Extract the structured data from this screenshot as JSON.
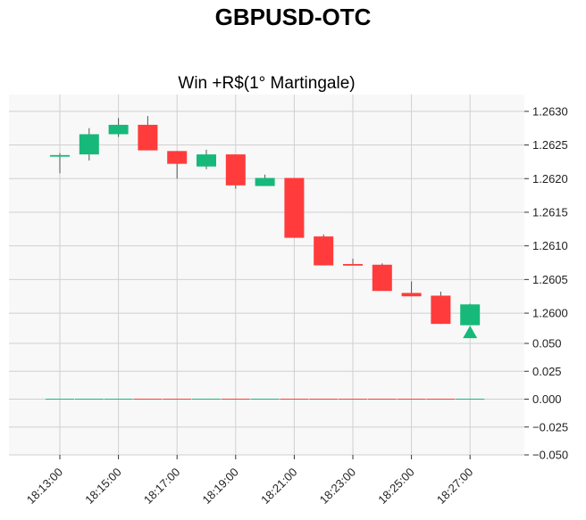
{
  "title": "GBPUSD-OTC",
  "chart_data": [
    {
      "type": "candlestick",
      "subtitle": "Win +R$(1° Martingale)",
      "x_ticks": [
        "18:13:00",
        "18:15:00",
        "18:17:00",
        "18:19:00",
        "18:21:00",
        "18:23:00",
        "18:25:00",
        "18:27:00"
      ],
      "y_ticks": [
        "1.2600",
        "1.2605",
        "1.2610",
        "1.2615",
        "1.2620",
        "1.2625",
        "1.2630"
      ],
      "ylim": [
        1.25955,
        1.26325
      ],
      "grid": true,
      "colors": {
        "up": "#16b97a",
        "down": "#ff3b3b",
        "wick": "#555555",
        "background": "#f8f8f8",
        "grid": "#d0d0d0"
      },
      "candles": [
        {
          "time": "18:13",
          "open": 1.26235,
          "high": 1.26238,
          "low": 1.26208,
          "close": 1.26235
        },
        {
          "time": "18:14",
          "open": 1.26236,
          "high": 1.26275,
          "low": 1.26227,
          "close": 1.26266
        },
        {
          "time": "18:15",
          "open": 1.26266,
          "high": 1.2629,
          "low": 1.26262,
          "close": 1.2628
        },
        {
          "time": "18:16",
          "open": 1.2628,
          "high": 1.26293,
          "low": 1.26242,
          "close": 1.26242
        },
        {
          "time": "18:17",
          "open": 1.26241,
          "high": 1.26241,
          "low": 1.262,
          "close": 1.26222
        },
        {
          "time": "18:18",
          "open": 1.26218,
          "high": 1.26243,
          "low": 1.26214,
          "close": 1.26236
        },
        {
          "time": "18:19",
          "open": 1.26236,
          "high": 1.26236,
          "low": 1.26185,
          "close": 1.2619
        },
        {
          "time": "18:20",
          "open": 1.26189,
          "high": 1.26206,
          "low": 1.26189,
          "close": 1.26201
        },
        {
          "time": "18:21",
          "open": 1.26201,
          "high": 1.26201,
          "low": 1.26112,
          "close": 1.26112
        },
        {
          "time": "18:22",
          "open": 1.26114,
          "high": 1.26117,
          "low": 1.26071,
          "close": 1.26071
        },
        {
          "time": "18:23",
          "open": 1.26073,
          "high": 1.26081,
          "low": 1.26071,
          "close": 1.26071
        },
        {
          "time": "18:24",
          "open": 1.26072,
          "high": 1.26074,
          "low": 1.26033,
          "close": 1.26033
        },
        {
          "time": "18:25",
          "open": 1.2603,
          "high": 1.26047,
          "low": 1.26025,
          "close": 1.26025
        },
        {
          "time": "18:26",
          "open": 1.26026,
          "high": 1.26032,
          "low": 1.25984,
          "close": 1.25984
        },
        {
          "time": "18:27",
          "open": 1.25982,
          "high": 1.26014,
          "low": 1.25982,
          "close": 1.26013
        }
      ],
      "marker": {
        "time": "18:27",
        "shape": "triangle-up",
        "color": "#16b97a",
        "value": 1.25972
      }
    },
    {
      "type": "bar",
      "y_ticks": [
        "0.050",
        "0.025",
        "0.000",
        "−0.025",
        "−0.050"
      ],
      "ylim": [
        -0.05,
        0.05
      ],
      "volume": [
        0,
        0,
        0,
        0,
        0,
        0,
        0,
        0,
        0,
        0,
        0,
        0,
        0,
        0,
        0
      ]
    }
  ]
}
